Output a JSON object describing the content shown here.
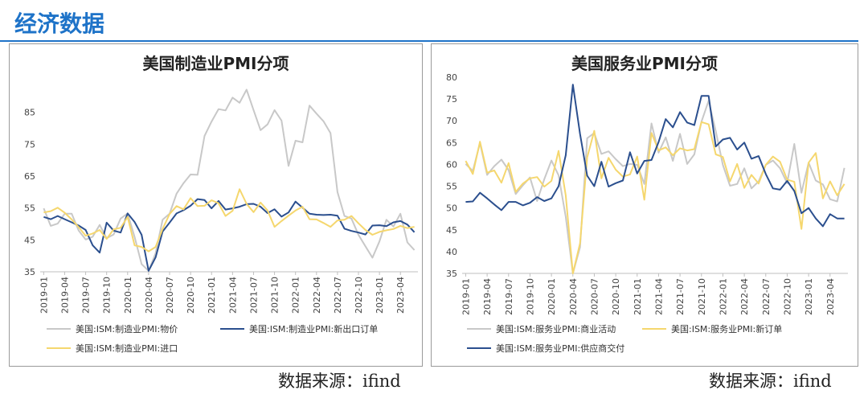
{
  "page": {
    "section_title": "经济数据"
  },
  "sources": {
    "left": "数据来源：ifind",
    "right": "数据来源：ifind"
  },
  "chart_data": [
    {
      "type": "line",
      "title": "美国制造业PMI分项",
      "ylim": [
        35,
        95
      ],
      "yticks": [
        35,
        45,
        55,
        65,
        75,
        85
      ],
      "x_tick_labels": [
        "2019-01",
        "2019-04",
        "2019-07",
        "2019-10",
        "2020-01",
        "2020-04",
        "2020-07",
        "2020-10",
        "2021-01",
        "2021-04",
        "2021-07",
        "2021-10",
        "2022-01",
        "2022-04",
        "2022-07",
        "2022-10",
        "2023-01",
        "2023-04"
      ],
      "x": [
        "2019-01",
        "2019-02",
        "2019-03",
        "2019-04",
        "2019-05",
        "2019-06",
        "2019-07",
        "2019-08",
        "2019-09",
        "2019-10",
        "2019-11",
        "2019-12",
        "2020-01",
        "2020-02",
        "2020-03",
        "2020-04",
        "2020-05",
        "2020-06",
        "2020-07",
        "2020-08",
        "2020-09",
        "2020-10",
        "2020-11",
        "2020-12",
        "2021-01",
        "2021-02",
        "2021-03",
        "2021-04",
        "2021-05",
        "2021-06",
        "2021-07",
        "2021-08",
        "2021-09",
        "2021-10",
        "2021-11",
        "2021-12",
        "2022-01",
        "2022-02",
        "2022-03",
        "2022-04",
        "2022-05",
        "2022-06",
        "2022-07",
        "2022-08",
        "2022-09",
        "2022-10",
        "2022-11",
        "2022-12",
        "2023-01",
        "2023-02",
        "2023-03",
        "2023-04",
        "2023-05",
        "2023-06"
      ],
      "grid": false,
      "legend_position": "bottom",
      "series": [
        {
          "name": "美国:ISM:制造业PMI:物价",
          "color": "#c8c8c8",
          "values": [
            54.9,
            49.4,
            50.1,
            53.2,
            53.2,
            47.9,
            45.1,
            46.0,
            49.7,
            45.5,
            46.7,
            51.7,
            53.3,
            45.9,
            37.4,
            35.3,
            40.8,
            51.3,
            53.2,
            59.5,
            62.8,
            65.5,
            65.4,
            77.6,
            82.1,
            86.0,
            85.6,
            89.6,
            88.0,
            92.1,
            85.7,
            79.4,
            81.2,
            85.7,
            82.4,
            68.2,
            76.1,
            75.6,
            87.1,
            84.6,
            82.2,
            78.5,
            60.0,
            52.5,
            51.7,
            46.6,
            43.0,
            39.4,
            44.5,
            51.3,
            49.2,
            53.2,
            44.2,
            41.8
          ]
        },
        {
          "name": "美国:ISM:制造业PMI:新出口订单",
          "color": "#2b4f8e",
          "values": [
            52.2,
            51.5,
            52.5,
            51.5,
            50.5,
            49.5,
            48.1,
            43.3,
            41.0,
            50.4,
            47.9,
            47.3,
            53.3,
            50.6,
            46.6,
            35.3,
            39.5,
            47.6,
            50.4,
            53.3,
            54.3,
            55.7,
            57.8,
            57.5,
            54.9,
            57.2,
            54.5,
            54.9,
            55.4,
            56.2,
            56.3,
            55.4,
            53.4,
            54.6,
            52.3,
            53.6,
            57.0,
            55.1,
            53.2,
            52.9,
            52.8,
            52.9,
            52.6,
            48.5,
            47.8,
            47.3,
            46.7,
            49.5,
            49.6,
            49.3,
            50.5,
            50.9,
            49.8,
            47.4
          ]
        },
        {
          "name": "美国:ISM:制造业PMI:进口",
          "color": "#f5d76e",
          "values": [
            53.6,
            54.0,
            55.1,
            53.5,
            51.4,
            49.0,
            46.3,
            47.0,
            48.1,
            45.3,
            48.3,
            48.8,
            52.2,
            43.3,
            42.8,
            41.4,
            42.8,
            48.4,
            53.1,
            55.6,
            54.6,
            58.1,
            55.6,
            55.7,
            57.4,
            56.5,
            52.5,
            54.1,
            60.9,
            56.3,
            53.7,
            56.7,
            54.2,
            49.1,
            50.9,
            52.6,
            54.2,
            55.4,
            51.5,
            51.4,
            50.3,
            49.1,
            51.1,
            51.3,
            52.5,
            50.2,
            48.1,
            46.6,
            47.5,
            48.0,
            48.4,
            49.4,
            48.7,
            49.1
          ]
        }
      ]
    },
    {
      "type": "line",
      "title": "美国服务业PMI分项",
      "ylim": [
        35,
        80
      ],
      "yticks": [
        35,
        40,
        45,
        50,
        55,
        60,
        65,
        70,
        75,
        80
      ],
      "x_tick_labels": [
        "2019-01",
        "2019-04",
        "2019-07",
        "2019-10",
        "2020-01",
        "2020-04",
        "2020-07",
        "2020-10",
        "2021-01",
        "2021-04",
        "2021-07",
        "2021-10",
        "2022-01",
        "2022-04",
        "2022-07",
        "2022-10",
        "2023-01",
        "2023-04"
      ],
      "x": [
        "2019-01",
        "2019-02",
        "2019-03",
        "2019-04",
        "2019-05",
        "2019-06",
        "2019-07",
        "2019-08",
        "2019-09",
        "2019-10",
        "2019-11",
        "2019-12",
        "2020-01",
        "2020-02",
        "2020-03",
        "2020-04",
        "2020-05",
        "2020-06",
        "2020-07",
        "2020-08",
        "2020-09",
        "2020-10",
        "2020-11",
        "2020-12",
        "2021-01",
        "2021-02",
        "2021-03",
        "2021-04",
        "2021-05",
        "2021-06",
        "2021-07",
        "2021-08",
        "2021-09",
        "2021-10",
        "2021-11",
        "2021-12",
        "2022-01",
        "2022-02",
        "2022-03",
        "2022-04",
        "2022-05",
        "2022-06",
        "2022-07",
        "2022-08",
        "2022-09",
        "2022-10",
        "2022-11",
        "2022-12",
        "2023-01",
        "2023-02",
        "2023-03",
        "2023-04",
        "2023-05",
        "2023-06"
      ],
      "grid": false,
      "legend_position": "bottom",
      "series": [
        {
          "name": "美国:ISM:服务业PMI:商业活动",
          "color": "#c8c8c8",
          "values": [
            60.1,
            58.5,
            64.9,
            57.6,
            59.6,
            61.1,
            58.7,
            53.2,
            55.2,
            57.0,
            51.6,
            56.6,
            60.9,
            57.5,
            48.0,
            26.0,
            41.0,
            66.0,
            67.2,
            62.4,
            63.0,
            61.2,
            59.6,
            60.1,
            59.9,
            55.5,
            69.4,
            62.7,
            66.2,
            60.8,
            67.0,
            60.1,
            62.3,
            69.8,
            74.6,
            67.6,
            59.9,
            55.1,
            55.5,
            59.1,
            54.5,
            56.1,
            59.9,
            60.9,
            59.1,
            55.7,
            64.7,
            53.5,
            60.4,
            56.3,
            55.4,
            52.0,
            51.5,
            59.2
          ]
        },
        {
          "name": "美国:ISM:服务业PMI:新订单",
          "color": "#f5d76e",
          "values": [
            60.8,
            57.8,
            65.2,
            58.1,
            58.6,
            55.8,
            60.3,
            53.7,
            55.6,
            56.8,
            57.1,
            54.9,
            56.2,
            63.1,
            52.9,
            32.9,
            41.9,
            61.6,
            67.7,
            56.8,
            61.5,
            58.8,
            57.2,
            57.7,
            61.8,
            51.9,
            67.2,
            63.2,
            63.9,
            62.1,
            63.7,
            63.2,
            63.5,
            69.7,
            69.2,
            62.3,
            61.7,
            56.1,
            60.1,
            54.6,
            57.6,
            55.6,
            59.9,
            61.8,
            60.6,
            56.5,
            56.0,
            45.2,
            60.4,
            62.6,
            52.2,
            56.1,
            52.9,
            55.5
          ]
        },
        {
          "name": "美国:ISM:服务业PMI:供应商交付",
          "color": "#2b4f8e",
          "values": [
            51.4,
            51.5,
            53.5,
            52.2,
            50.8,
            49.5,
            51.4,
            51.4,
            50.6,
            51.2,
            52.5,
            51.6,
            52.2,
            55.0,
            62.1,
            78.3,
            67.0,
            57.4,
            55.0,
            60.6,
            54.9,
            55.7,
            56.3,
            62.8,
            57.9,
            60.8,
            61.0,
            65.1,
            70.4,
            68.5,
            72.0,
            69.6,
            69.0,
            75.7,
            75.7,
            64.1,
            65.7,
            66.1,
            63.4,
            65.0,
            61.3,
            61.9,
            57.8,
            54.5,
            54.2,
            56.2,
            53.9,
            48.8,
            50.0,
            47.6,
            45.8,
            48.6,
            47.6,
            47.6
          ]
        }
      ]
    }
  ]
}
